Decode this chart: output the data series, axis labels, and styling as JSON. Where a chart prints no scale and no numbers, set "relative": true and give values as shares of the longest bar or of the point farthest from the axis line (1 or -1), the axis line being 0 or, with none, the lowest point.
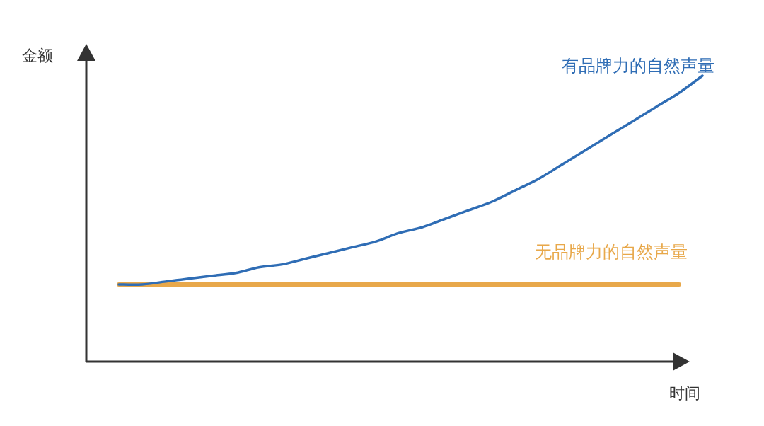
{
  "chart_data": {
    "type": "line",
    "relative": true,
    "xlabel": "时间",
    "ylabel": "金额",
    "categories": [
      null,
      null,
      null,
      null,
      null,
      null,
      null,
      null,
      null,
      null,
      null,
      null,
      null,
      null,
      null,
      null,
      null,
      null,
      null,
      null,
      null,
      null,
      null,
      null,
      null,
      null
    ],
    "series": [
      {
        "name": "有品牌力的自然声量",
        "color": "#2f6db5",
        "values": [
          0.27,
          0.27,
          0.28,
          0.29,
          0.3,
          0.31,
          0.33,
          0.34,
          0.36,
          0.38,
          0.4,
          0.42,
          0.45,
          0.47,
          0.5,
          0.53,
          0.56,
          0.6,
          0.64,
          0.69,
          0.74,
          0.79,
          0.84,
          0.89,
          0.94,
          1
        ]
      },
      {
        "name": "无品牌力的自然声量",
        "color": "#e8a84a",
        "values": [
          0.27,
          0.27,
          0.27,
          0.27,
          0.27,
          0.27,
          0.27,
          0.27,
          0.27,
          0.27,
          0.27,
          0.27,
          0.27,
          0.27,
          0.27,
          0.27,
          0.27,
          0.27,
          0.27,
          0.27,
          0.27,
          0.27,
          0.27,
          0.27,
          0.27,
          null
        ]
      }
    ]
  }
}
